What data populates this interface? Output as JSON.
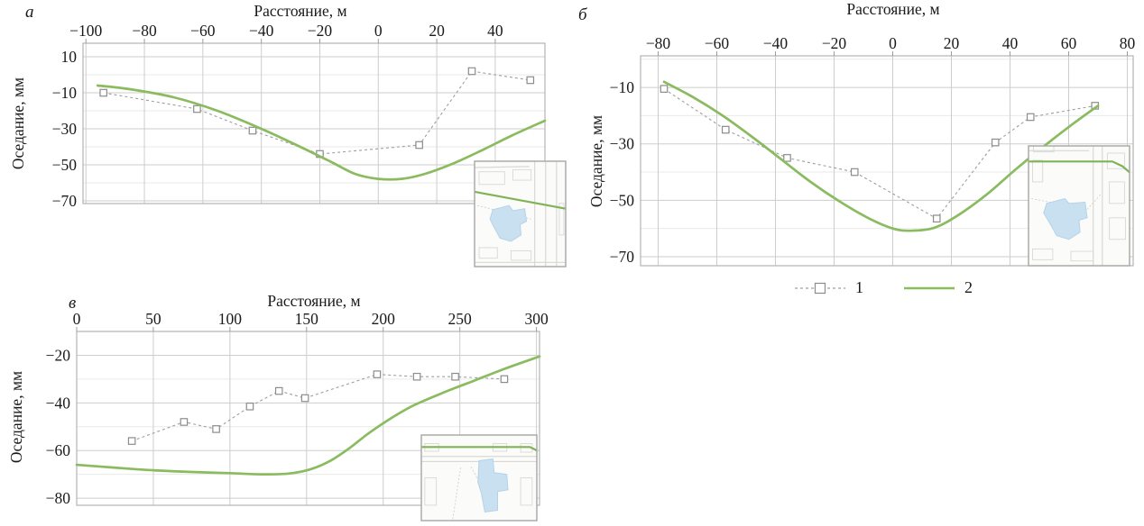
{
  "colors": {
    "series1_line": "#9e9e9e",
    "series1_marker_fill": "#ffffff",
    "series1_marker_stroke": "#8c8c8c",
    "series2_line": "#8abb5e",
    "grid_major": "#cdcdcd",
    "grid_minor": "#eaeaea",
    "plot_border": "#b3b3b3",
    "tick": "#9c9c9c",
    "text": "#1a1a1a",
    "map_bg": "#fbfbf9",
    "map_street": "#d8d8d4",
    "map_dashed": "#d0d0cc",
    "map_water_fill": "#c9e0f1",
    "map_water_stroke": "#b5d2e8",
    "map_route": "#7fb356",
    "map_border": "#a6a6a2"
  },
  "legend": {
    "items": [
      {
        "label": "1",
        "swatch": "dashed-line-square-marker-icon"
      },
      {
        "label": "2",
        "swatch": "green-solid-line-icon"
      }
    ]
  },
  "chart_data": [
    {
      "type": "line",
      "panel_id": "a",
      "panel_label": "а",
      "xlabel": "Расстояние, м",
      "ylabel": "Оседание, мм",
      "xlim": [
        -101,
        57
      ],
      "ylim": [
        -71.5,
        17.5
      ],
      "xticks": {
        "values": [
          -100,
          -80,
          -60,
          -40,
          -20,
          0,
          20,
          40
        ],
        "labels": [
          "−100",
          "−80",
          "−60",
          "−40",
          "−20",
          "0",
          "20",
          "40"
        ]
      },
      "yticks": {
        "values": [
          10,
          -10,
          -30,
          -50,
          -70
        ],
        "labels": [
          "10",
          "−10",
          "−30",
          "−50",
          "−70"
        ]
      },
      "grid": "major+minor",
      "series": [
        {
          "name": "1",
          "style": "dashed-square",
          "x": [
            -94,
            -62,
            -43,
            -20,
            14,
            32,
            52
          ],
          "y": [
            -10,
            -19,
            -31,
            -44,
            -39,
            2,
            -3
          ]
        },
        {
          "name": "2",
          "style": "solid-green",
          "x": [
            -96,
            -85,
            -70,
            -55,
            -40,
            -28,
            -16,
            -8,
            0,
            8,
            16,
            26,
            36,
            46,
            57
          ],
          "y": [
            -6,
            -8,
            -12.5,
            -20,
            -30,
            -39,
            -48.5,
            -55,
            -57.8,
            -57.8,
            -55,
            -49,
            -41.5,
            -33.5,
            -25.5
          ]
        }
      ],
      "inset": {
        "label": "location-map"
      }
    },
    {
      "type": "line",
      "panel_id": "b",
      "panel_label": "б",
      "xlabel": "Расстояние, м",
      "ylabel": "Оседание, мм",
      "xlim": [
        -86,
        82
      ],
      "ylim": [
        -73.2,
        1.2
      ],
      "xticks": {
        "values": [
          -80,
          -60,
          -40,
          -20,
          0,
          20,
          40,
          60,
          80
        ],
        "labels": [
          "−80",
          "−60",
          "−40",
          "−20",
          "0",
          "20",
          "40",
          "60",
          "80"
        ]
      },
      "yticks": {
        "values": [
          -10,
          -30,
          -50,
          -70
        ],
        "labels": [
          "−10",
          "−30",
          "−50",
          "−70"
        ]
      },
      "grid": "major+minor",
      "series": [
        {
          "name": "1",
          "style": "dashed-square",
          "x": [
            -78,
            -57,
            -36,
            -13,
            15,
            35,
            47,
            69
          ],
          "y": [
            -10.5,
            -25,
            -35,
            -40,
            -56.5,
            -29.5,
            -20.5,
            -16.5
          ]
        },
        {
          "name": "2",
          "style": "solid-green",
          "x": [
            -78,
            -68,
            -58,
            -48,
            -38,
            -28,
            -18,
            -8,
            0,
            6,
            14,
            22,
            32,
            42,
            52,
            62,
            70
          ],
          "y": [
            -8,
            -13.5,
            -20,
            -27.5,
            -35.5,
            -43.5,
            -50.5,
            -56.5,
            -60,
            -60.8,
            -59.8,
            -55.5,
            -48,
            -39,
            -30.5,
            -22.5,
            -16.5
          ]
        }
      ],
      "inset": {
        "label": "location-map"
      }
    },
    {
      "type": "line",
      "panel_id": "v",
      "panel_label": "в",
      "xlabel": "Расстояние, м",
      "ylabel": "Оседание, мм",
      "xlim": [
        0,
        302
      ],
      "ylim": [
        -83,
        -10
      ],
      "xticks": {
        "values": [
          0,
          50,
          100,
          150,
          200,
          250,
          300
        ],
        "labels": [
          "0",
          "50",
          "100",
          "150",
          "200",
          "250",
          "300"
        ]
      },
      "yticks": {
        "values": [
          -20,
          -40,
          -60,
          -80
        ],
        "labels": [
          "−20",
          "−40",
          "−60",
          "−80"
        ]
      },
      "grid": "major+minor",
      "series": [
        {
          "name": "1",
          "style": "dashed-square",
          "x": [
            36,
            70,
            91,
            113,
            132,
            149,
            196,
            222,
            247,
            279
          ],
          "y": [
            -56,
            -48,
            -51,
            -41.5,
            -35,
            -38,
            -28,
            -29,
            -29,
            -30
          ]
        },
        {
          "name": "2",
          "style": "solid-green",
          "x": [
            0,
            25,
            50,
            75,
            100,
            120,
            138,
            152,
            165,
            178,
            190,
            205,
            220,
            240,
            260,
            280,
            302
          ],
          "y": [
            -66,
            -67.2,
            -68.3,
            -69,
            -69.5,
            -70,
            -69.7,
            -68,
            -64.5,
            -59,
            -53,
            -46.5,
            -41,
            -35.5,
            -30.5,
            -25.5,
            -20.5
          ]
        }
      ],
      "inset": {
        "label": "location-map"
      }
    }
  ]
}
